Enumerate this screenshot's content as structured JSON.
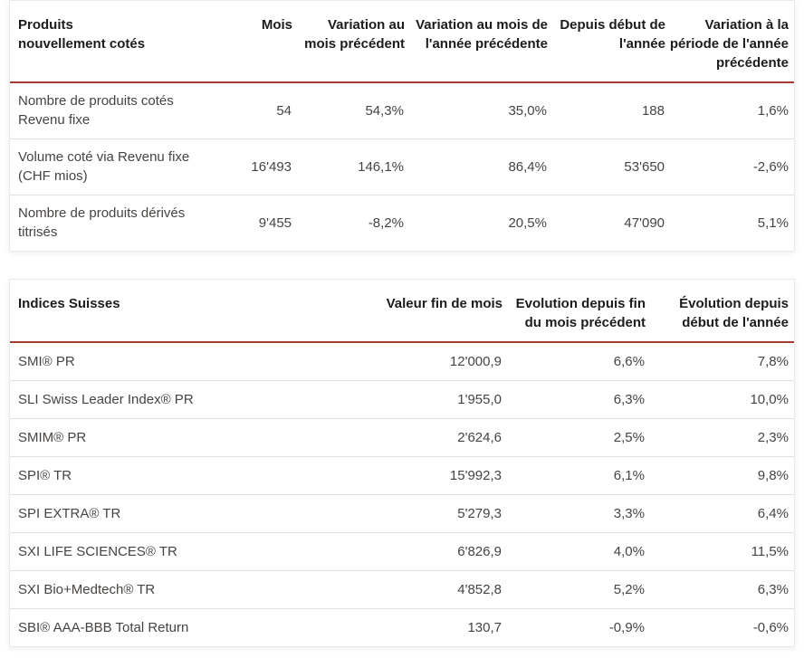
{
  "colors": {
    "accent_rule": "#a33e2d",
    "row_divider": "#e0e0e0",
    "header_text": "#1c1c1c",
    "body_text": "#474340",
    "card_border": "#e9e9e9",
    "background": "#ffffff"
  },
  "chart_data": [
    {
      "type": "table",
      "title": "Produits nouvellement cotés",
      "columns": [
        "Produits nouvellement cotés",
        "Mois",
        "Variation au mois précédent",
        "Variation au mois de l'année précédente",
        "Depuis début de l'année",
        "Variation à la période de l'année précédente"
      ],
      "rows": [
        {
          "label": "Nombre de produits cotés Revenu fixe",
          "values": [
            "54",
            "54,3%",
            "35,0%",
            "188",
            "1,6%"
          ]
        },
        {
          "label": "Volume coté via Revenu fixe (CHF mios)",
          "values": [
            "16'493",
            "146,1%",
            "86,4%",
            "53'650",
            "-2,6%"
          ]
        },
        {
          "label": "Nombre de produits dérivés titrisés",
          "values": [
            "9'455",
            "-8,2%",
            "20,5%",
            "47'090",
            "5,1%"
          ]
        }
      ]
    },
    {
      "type": "table",
      "title": "Indices Suisses",
      "columns": [
        "Indices Suisses",
        "Valeur fin de mois",
        "Evolution depuis fin du mois précédent",
        "Évolution depuis début de l'année"
      ],
      "rows": [
        {
          "label": "SMI® PR",
          "values": [
            "12'000,9",
            "6,6%",
            "7,8%"
          ]
        },
        {
          "label": "SLI Swiss Leader Index® PR",
          "values": [
            "1'955,0",
            "6,3%",
            "10,0%"
          ]
        },
        {
          "label": "SMIM® PR",
          "values": [
            "2'624,6",
            "2,5%",
            "2,3%"
          ]
        },
        {
          "label": "SPI® TR",
          "values": [
            "15'992,3",
            "6,1%",
            "9,8%"
          ]
        },
        {
          "label": "SPI EXTRA® TR",
          "values": [
            "5'279,3",
            "3,3%",
            "6,4%"
          ]
        },
        {
          "label": "SXI LIFE SCIENCES® TR",
          "values": [
            "6'826,9",
            "4,0%",
            "11,5%"
          ]
        },
        {
          "label": "SXI Bio+Medtech® TR",
          "values": [
            "4'852,8",
            "5,2%",
            "6,3%"
          ]
        },
        {
          "label": "SBI® AAA-BBB Total Return",
          "values": [
            "130,7",
            "-0,9%",
            "-0,6%"
          ]
        }
      ]
    }
  ]
}
